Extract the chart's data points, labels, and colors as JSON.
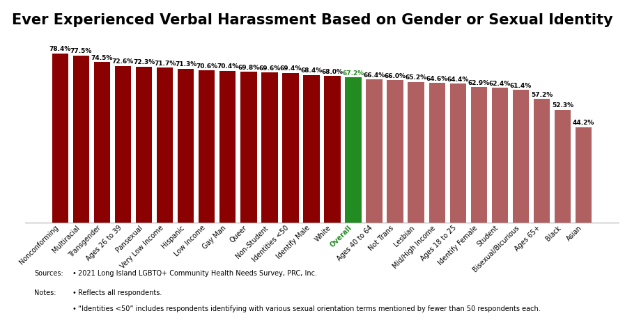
{
  "title": "Ever Experienced Verbal Harassment Based on Gender or Sexual Identity",
  "categories": [
    "Nonconforming",
    "Multiracial",
    "Transgender",
    "Ages 26 to 39",
    "Pansexual",
    "Very Low Income",
    "Hispanic",
    "Low Income",
    "Gay Man",
    "Queer",
    "Non-Student",
    "Identities <50",
    "Identify Male",
    "White",
    "Overall",
    "Ages 40 to 64",
    "Not Trans",
    "Lesbian",
    "Mid/High Income",
    "Ages 18 to 25",
    "Identify Female",
    "Student",
    "Bisexual/Bicurious",
    "Ages 65+",
    "Black",
    "Asian"
  ],
  "values": [
    78.4,
    77.5,
    74.5,
    72.6,
    72.3,
    71.7,
    71.3,
    70.6,
    70.4,
    69.8,
    69.6,
    69.4,
    68.4,
    68.0,
    67.2,
    66.4,
    66.0,
    65.2,
    64.6,
    64.4,
    62.9,
    62.4,
    61.4,
    57.2,
    52.3,
    44.2
  ],
  "bar_color_above": "#8B0000",
  "bar_color_below": "#B06060",
  "bar_color_overall": "#228B22",
  "overall_index": 14,
  "overall_label_color": "#228B22",
  "title_fontsize": 15,
  "label_fontsize": 6.5,
  "tick_fontsize": 7.0,
  "ylim": [
    0,
    88
  ],
  "background_color": "#ffffff",
  "bullet1": "2021 Long Island LGBTQ+ Community Health Needs Survey, PRC, Inc.",
  "bullet2": "Reflects all respondents.",
  "bullet3": "“Identities <50” includes respondents identifying with various sexual orientation terms mentioned by fewer than 50 respondents each."
}
